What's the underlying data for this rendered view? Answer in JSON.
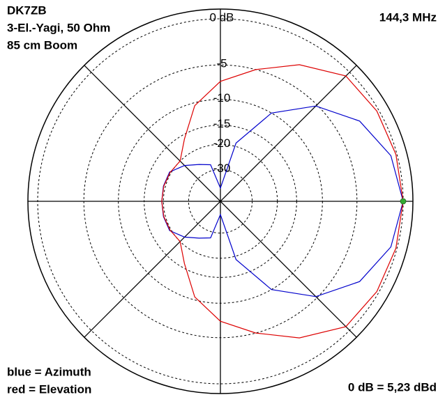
{
  "chart_data": {
    "type": "polar",
    "title_lines": [
      "DK7ZB",
      "3-El.-Yagi, 50 Ohm",
      "85 cm Boom"
    ],
    "frequency": "144,3 MHz",
    "reference": "0 dB = 5,23 dBd",
    "rscale": "arrl",
    "angles": [
      0,
      15,
      30,
      45,
      60,
      75,
      90,
      105,
      120,
      135,
      150,
      165,
      180,
      195,
      210,
      225,
      240,
      255,
      270,
      285,
      300,
      315,
      330,
      345
    ],
    "series": [
      {
        "name": "blue = Azimuth",
        "color": "#0000cc",
        "values": [
          0,
          -0.6,
          -2.2,
          -5.2,
          -10,
          -19,
          -45,
          -27,
          -25,
          -22,
          -19.5,
          -19.4,
          -19.5,
          -19.4,
          -19.5,
          -22,
          -25,
          -27,
          -45,
          -19,
          -10,
          -5.2,
          -2.2,
          -0.6
        ]
      },
      {
        "name": "red = Elevation",
        "color": "#dd0000",
        "values": [
          0,
          -0.1,
          -0.2,
          -0.5,
          -2.5,
          -5,
          -7.2,
          -10.5,
          -16,
          -20,
          -19.7,
          -19.5,
          -19.5,
          -19.5,
          -19.7,
          -20,
          -16,
          -10.5,
          -7.2,
          -5,
          -2.5,
          -0.5,
          -0.2,
          -0.1
        ]
      }
    ],
    "rlim": [
      -45,
      0
    ],
    "rticks": [
      {
        "value": 0,
        "label": "0 dB"
      },
      -5,
      -10,
      -15,
      -20,
      -30
    ],
    "grid": true,
    "max_marker_color": "#33aa33"
  }
}
